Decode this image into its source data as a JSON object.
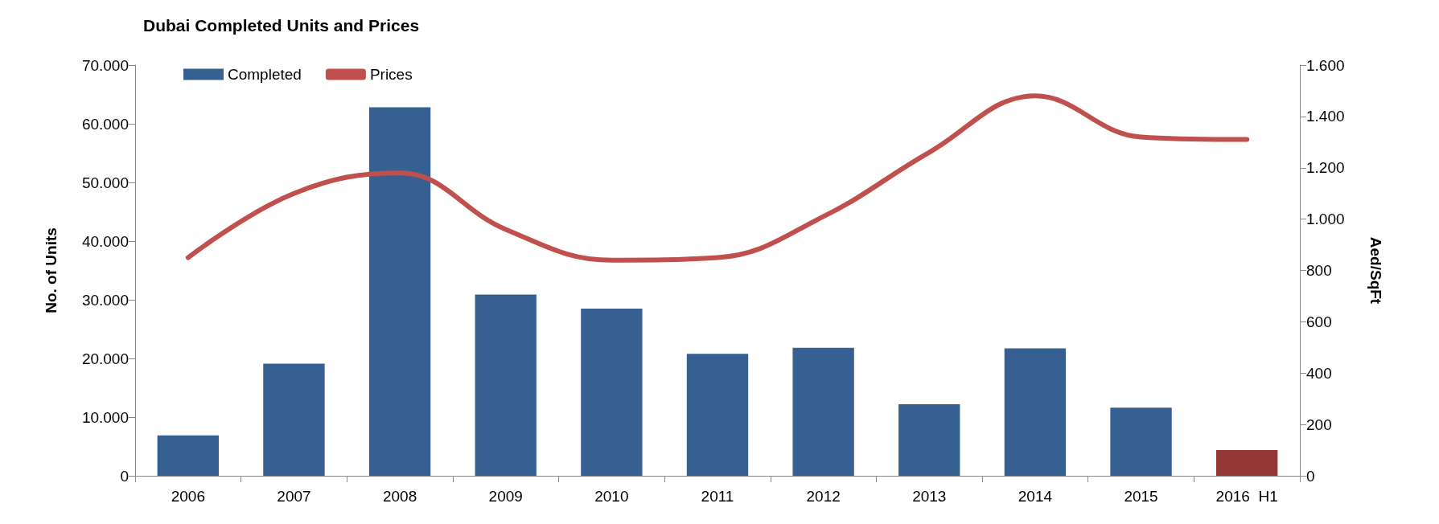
{
  "chart_data": {
    "type": "bar",
    "title": "Dubai Completed Units and Prices",
    "ylabel": "No. of Units",
    "y2label": "Aed/SqFt",
    "categories": [
      "2006",
      "2007",
      "2008",
      "2009",
      "2010",
      "2011",
      "2012",
      "2013",
      "2014",
      "2015",
      "2016  H1"
    ],
    "series": [
      {
        "name": "Completed",
        "color": "#376092",
        "colors": [
          "#376092",
          "#376092",
          "#376092",
          "#376092",
          "#376092",
          "#376092",
          "#376092",
          "#376092",
          "#376092",
          "#376092",
          "#953735"
        ],
        "values": [
          6900,
          19100,
          62800,
          30900,
          28500,
          20800,
          21800,
          12200,
          21700,
          11600,
          4400
        ]
      },
      {
        "name": "Prices",
        "type": "line",
        "axis": "y2",
        "color": "#c0504d",
        "values": [
          850,
          1100,
          1180,
          960,
          840,
          850,
          1010,
          1260,
          1480,
          1320,
          1310
        ]
      }
    ],
    "ylim": [
      0,
      70000
    ],
    "yticks": [
      0,
      {
        "value": 10000,
        "label": "10.000"
      },
      {
        "value": 20000,
        "label": "20.000"
      },
      {
        "value": 30000,
        "label": "30.000"
      },
      {
        "value": 40000,
        "label": "40.000"
      },
      {
        "value": 50000,
        "label": "50.000"
      },
      {
        "value": 60000,
        "label": "60.000"
      },
      {
        "value": 70000,
        "label": "70.000"
      }
    ],
    "y2lim": [
      0,
      1600
    ],
    "y2ticks": [
      0,
      200,
      400,
      600,
      800,
      {
        "value": 1000,
        "label": "1.000"
      },
      {
        "value": 1200,
        "label": "1.200"
      },
      {
        "value": 1400,
        "label": "1.400"
      },
      {
        "value": 1600,
        "label": "1.600"
      }
    ],
    "grid": false,
    "legend": "top left",
    "marker": "none",
    "line_style": "solid"
  }
}
